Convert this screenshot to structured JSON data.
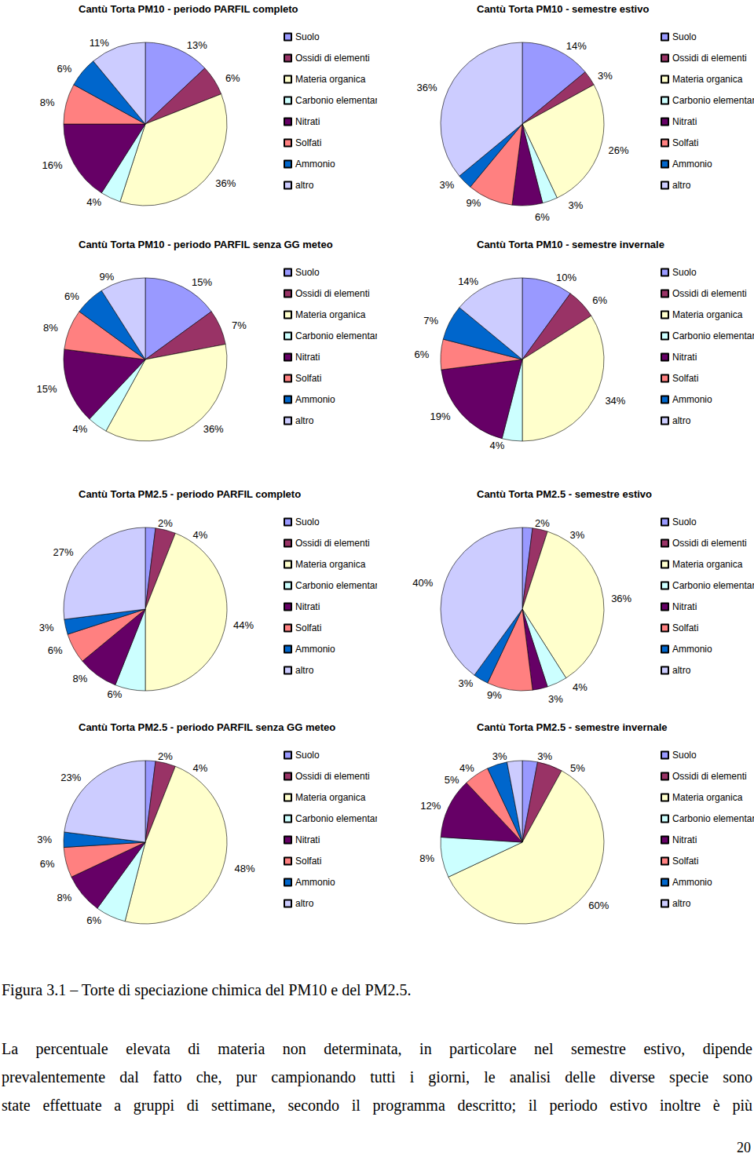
{
  "chart_data": [
    {
      "type": "pie",
      "title": "Cantù Torta PM10 - periodo PARFIL completo",
      "categories": [
        "Suolo",
        "Ossidi di elementi",
        "Materia organica",
        "Carbonio elementare",
        "Nitrati",
        "Solfati",
        "Ammonio",
        "altro"
      ],
      "values": [
        13,
        6,
        36,
        4,
        16,
        8,
        6,
        11
      ],
      "value_labels": [
        "13%",
        "6%",
        "36%",
        "4%",
        "16%",
        "8%",
        "6%",
        "11%"
      ],
      "colors": [
        "#9999ff",
        "#993366",
        "#ffffcc",
        "#ccffff",
        "#660066",
        "#ff8080",
        "#0066cc",
        "#ccccff"
      ],
      "data_labels": true,
      "legend": "right"
    },
    {
      "type": "pie",
      "title": "Cantù Torta PM10 - semestre estivo",
      "categories": [
        "Suolo",
        "Ossidi di elementi",
        "Materia organica",
        "Carbonio elementare",
        "Nitrati",
        "Solfati",
        "Ammonio",
        "altro"
      ],
      "values": [
        14,
        3,
        26,
        3,
        6,
        9,
        3,
        36
      ],
      "value_labels": [
        "14%",
        "3%",
        "26%",
        "3%",
        "6%",
        "9%",
        "3%",
        "36%"
      ],
      "colors": [
        "#9999ff",
        "#993366",
        "#ffffcc",
        "#ccffff",
        "#660066",
        "#ff8080",
        "#0066cc",
        "#ccccff"
      ],
      "data_labels": true,
      "legend": "right"
    },
    {
      "type": "pie",
      "title": "Cantù Torta PM10 - periodo PARFIL senza GG meteo",
      "categories": [
        "Suolo",
        "Ossidi di elementi",
        "Materia organica",
        "Carbonio elementare",
        "Nitrati",
        "Solfati",
        "Ammonio",
        "altro"
      ],
      "values": [
        15,
        7,
        36,
        4,
        15,
        8,
        6,
        9
      ],
      "value_labels": [
        "15%",
        "7%",
        "36%",
        "4%",
        "15%",
        "8%",
        "6%",
        "9%"
      ],
      "colors": [
        "#9999ff",
        "#993366",
        "#ffffcc",
        "#ccffff",
        "#660066",
        "#ff8080",
        "#0066cc",
        "#ccccff"
      ],
      "data_labels": true,
      "legend": "right"
    },
    {
      "type": "pie",
      "title": "Cantù Torta PM10 - semestre invernale",
      "categories": [
        "Suolo",
        "Ossidi di elementi",
        "Materia organica",
        "Carbonio elementare",
        "Nitrati",
        "Solfati",
        "Ammonio",
        "altro"
      ],
      "values": [
        10,
        6,
        34,
        4,
        19,
        6,
        7,
        14
      ],
      "value_labels": [
        "10%",
        "6%",
        "34%",
        "4%",
        "19%",
        "6%",
        "7%",
        "14%"
      ],
      "colors": [
        "#9999ff",
        "#993366",
        "#ffffcc",
        "#ccffff",
        "#660066",
        "#ff8080",
        "#0066cc",
        "#ccccff"
      ],
      "data_labels": true,
      "legend": "right"
    },
    {
      "type": "pie",
      "title": "Cantù Torta PM2.5 - periodo PARFIL completo",
      "categories": [
        "Suolo",
        "Ossidi di elementi",
        "Materia organica",
        "Carbonio elementare",
        "Nitrati",
        "Solfati",
        "Ammonio",
        "altro"
      ],
      "values": [
        2,
        4,
        44,
        6,
        8,
        6,
        3,
        27
      ],
      "value_labels": [
        "2%",
        "4%",
        "44%",
        "6%",
        "8%",
        "6%",
        "3%",
        "27%"
      ],
      "colors": [
        "#9999ff",
        "#993366",
        "#ffffcc",
        "#ccffff",
        "#660066",
        "#ff8080",
        "#0066cc",
        "#ccccff"
      ],
      "data_labels": true,
      "legend": "right"
    },
    {
      "type": "pie",
      "title": "Cantù Torta PM2.5 - semestre estivo",
      "categories": [
        "Suolo",
        "Ossidi di elementi",
        "Materia organica",
        "Carbonio elementare",
        "Nitrati",
        "Solfati",
        "Ammonio",
        "altro"
      ],
      "values": [
        2,
        3,
        36,
        4,
        3,
        9,
        3,
        40
      ],
      "value_labels": [
        "2%",
        "3%",
        "36%",
        "4%",
        "3%",
        "9%",
        "3%",
        "40%"
      ],
      "colors": [
        "#9999ff",
        "#993366",
        "#ffffcc",
        "#ccffff",
        "#660066",
        "#ff8080",
        "#0066cc",
        "#ccccff"
      ],
      "data_labels": true,
      "legend": "right"
    },
    {
      "type": "pie",
      "title": "Cantù Torta PM2.5 - periodo PARFIL senza GG meteo",
      "categories": [
        "Suolo",
        "Ossidi di elementi",
        "Materia organica",
        "Carbonio elementare",
        "Nitrati",
        "Solfati",
        "Ammonio",
        "altro"
      ],
      "values": [
        2,
        4,
        48,
        6,
        8,
        6,
        3,
        23
      ],
      "value_labels": [
        "2%",
        "4%",
        "48%",
        "6%",
        "8%",
        "6%",
        "3%",
        "23%"
      ],
      "colors": [
        "#9999ff",
        "#993366",
        "#ffffcc",
        "#ccffff",
        "#660066",
        "#ff8080",
        "#0066cc",
        "#ccccff"
      ],
      "data_labels": true,
      "legend": "right"
    },
    {
      "type": "pie",
      "title": "Cantù Torta PM2.5 - semestre invernale",
      "categories": [
        "Suolo",
        "Ossidi di elementi",
        "Materia organica",
        "Carbonio elementare",
        "Nitrati",
        "Solfati",
        "Ammonio",
        "altro"
      ],
      "values": [
        3,
        5,
        60,
        8,
        12,
        5,
        4,
        3
      ],
      "value_labels": [
        "3%",
        "5%",
        "60%",
        "8%",
        "12%",
        "5%",
        "4%",
        "3%"
      ],
      "colors": [
        "#9999ff",
        "#993366",
        "#ffffcc",
        "#ccffff",
        "#660066",
        "#ff8080",
        "#0066cc",
        "#ccccff"
      ],
      "data_labels": true,
      "legend": "right"
    }
  ],
  "caption": "Figura 3.1 – Torte di speciazione chimica del PM10 e del PM2.5.",
  "paragraph": {
    "lines": [
      "La percentuale elevata di materia non determinata, in particolare nel semestre estivo, dipende",
      "prevalentemente dal fatto che, pur campionando tutti i giorni, le analisi delle diverse specie sono",
      "state effettuate a gruppi di settimane, secondo il programma descritto; il periodo estivo inoltre è più"
    ]
  },
  "page_number": "20"
}
